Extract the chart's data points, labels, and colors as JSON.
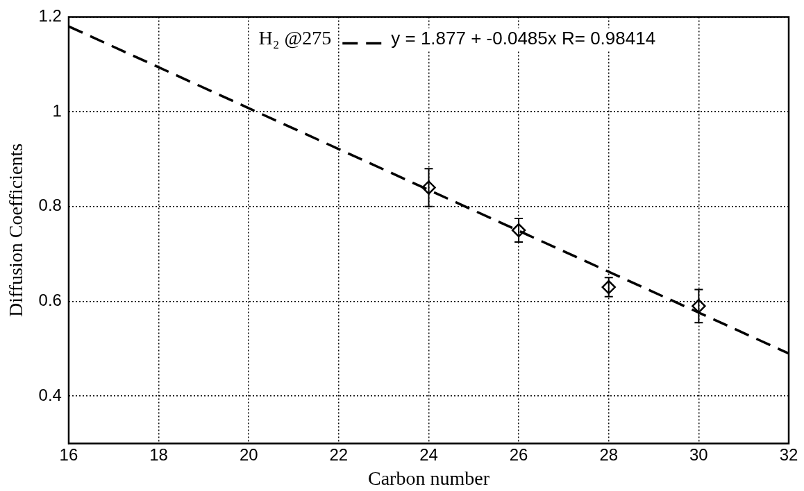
{
  "chart_data": {
    "type": "scatter",
    "xlabel": "Carbon number",
    "ylabel": "Diffusion Coefficients",
    "xlim": [
      16,
      32
    ],
    "xticks": [
      16,
      18,
      20,
      22,
      24,
      26,
      28,
      30,
      32
    ],
    "ylim": [
      0.3,
      1.2
    ],
    "yticks": [
      0.4,
      0.6,
      0.8,
      1,
      1.2
    ],
    "grid": true,
    "legend": "top",
    "marker": "diamond",
    "annotations": [
      "y = 1.877 + -0.0485x R= 0.98414"
    ],
    "series": [
      {
        "type": "scatter",
        "color": "#000000",
        "x": [
          24,
          26,
          28,
          30
        ],
        "values": [
          0.84,
          0.75,
          0.63,
          0.59
        ],
        "errors": [
          0.04,
          0.025,
          0.02,
          0.035
        ]
      },
      {
        "type": "line",
        "name": "H₂ @275",
        "color": "#000000",
        "marker": "none",
        "line_style": "dashed",
        "x": [
          16,
          32
        ],
        "values": [
          1.18,
          0.49
        ]
      }
    ]
  }
}
